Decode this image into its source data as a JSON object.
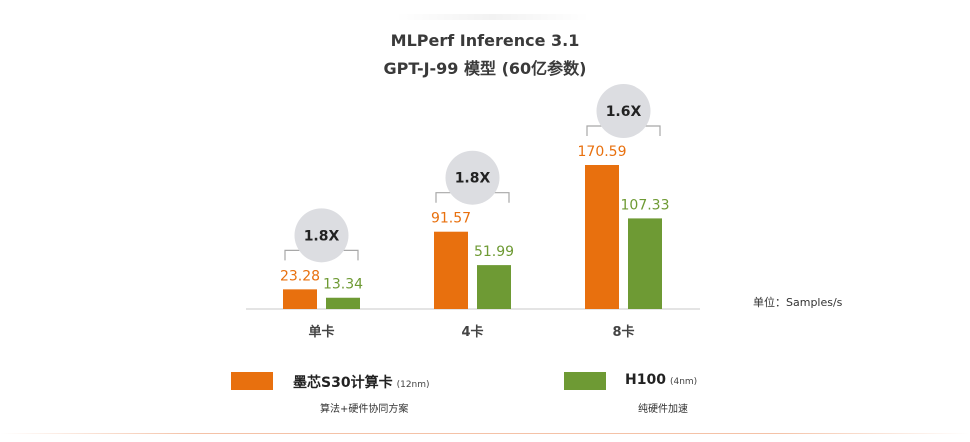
{
  "title_line1": "MLPerf Inference 3.1",
  "title_line2": "GPT-J-99 模型 (60亿参数)",
  "unit_label": "单位：Samples/s",
  "colors": {
    "orange": "#E8700E",
    "green": "#6E9A34",
    "bubble": "#DCDDE1",
    "axis": "#C8C8C8"
  },
  "legend": [
    {
      "name": "墨芯S30计算卡",
      "spec": "(12nm)",
      "desc": "算法+硬件协同方案",
      "color": "#E8700E"
    },
    {
      "name": "H100",
      "spec": "(4nm)",
      "desc": "纯硬件加速",
      "color": "#6E9A34"
    }
  ],
  "chart_data": {
    "type": "bar",
    "title": "MLPerf Inference 3.1",
    "subtitle": "GPT-J-99 模型 (60亿参数)",
    "categories": [
      "单卡",
      "4卡",
      "8卡"
    ],
    "series": [
      {
        "name": "墨芯S30计算卡",
        "values": [
          23.28,
          91.57,
          170.59
        ],
        "color": "#E8700E"
      },
      {
        "name": "H100",
        "values": [
          13.34,
          51.99,
          107.33
        ],
        "color": "#6E9A34"
      }
    ],
    "value_labels": [
      [
        "23.28",
        "91.57",
        "170.59"
      ],
      [
        "13.34",
        "51.99",
        "107.33"
      ]
    ],
    "annotations": [
      "1.8X",
      "1.8X",
      "1.6X"
    ],
    "ylim": [
      0,
      180
    ],
    "xlabel": "",
    "ylabel": "",
    "grid": false,
    "legend_position": "bottom"
  }
}
